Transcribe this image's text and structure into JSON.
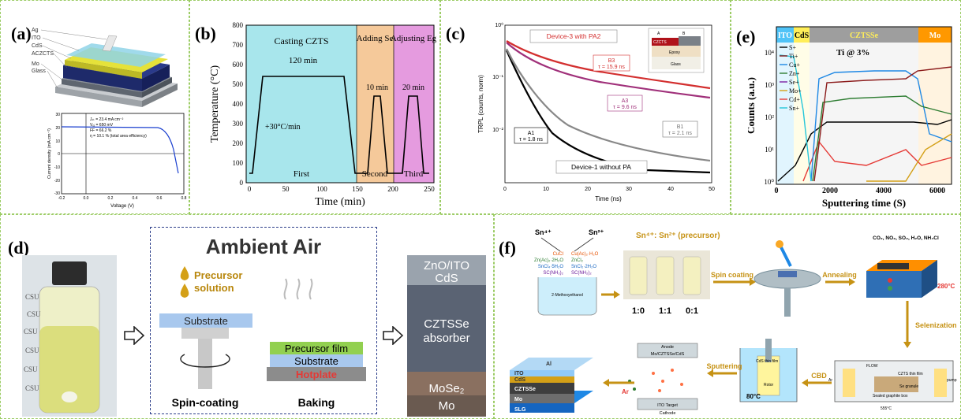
{
  "panels": {
    "a": {
      "label": "(a)",
      "layers": [
        "Ag",
        "ITO",
        "CdS",
        "ACZCTS",
        "Mo",
        "Glass"
      ],
      "jv": {
        "ylabel": "Current density (mA cm⁻²)",
        "xlabel": "Voltage (V)",
        "yticks": [
          "30",
          "20",
          "10",
          "0",
          "-10",
          "-20",
          "-30"
        ],
        "xticks": [
          "-0.2",
          "0.0",
          "0.2",
          "0.4",
          "0.6",
          "0.8"
        ],
        "params": [
          "Jₛₜ = 23.4 mA cm⁻²",
          "Vₒⱼ = 650 mV",
          "FF = 66.2 %",
          "η = 10.1 % (total area efficiency)"
        ]
      }
    },
    "b": {
      "label": "(b)",
      "ylabel": "Temperature (°C)",
      "xlabel": "Time (min)",
      "yticks": [
        "800",
        "700",
        "600",
        "500",
        "400",
        "300",
        "200",
        "100",
        "0"
      ],
      "xticks": [
        "0",
        "50",
        "100",
        "150",
        "200",
        "250"
      ],
      "stages": [
        "Casting CZTS",
        "Adding Se",
        "Adjusting Eg"
      ],
      "stage_names": [
        "First",
        "Second",
        "Third"
      ],
      "notes": [
        "120 min",
        "10 min",
        "20 min",
        "+30°C/min"
      ],
      "colors": {
        "first": "#a8e6ec",
        "second": "#f5c99a",
        "third": "#e59bdf"
      }
    },
    "c": {
      "label": "(c)",
      "ylabel": "TRPL (counts, norm)",
      "xlabel": "Time (ns)",
      "yticks": [
        "10⁰",
        "10⁻¹",
        "10⁻²"
      ],
      "xticks": [
        "0",
        "10",
        "20",
        "30",
        "40",
        "50"
      ],
      "title_box": "Device-3 with PA2",
      "bottom_box": "Device-1 without PA",
      "inset": [
        "A",
        "B",
        "CZCTS",
        "Epoxy",
        "Glass"
      ],
      "annotations": [
        {
          "name": "B3",
          "tau": "τ = 15.9 ns",
          "color": "#d32f2f"
        },
        {
          "name": "A3",
          "tau": "τ = 9.6 ns",
          "color": "#a0307a"
        },
        {
          "name": "B1",
          "tau": "τ = 2.1 ns",
          "color": "#777777"
        },
        {
          "name": "A1",
          "tau": "τ = 1.8 ns",
          "color": "#000000"
        }
      ]
    },
    "e": {
      "label": "(e)",
      "ylabel": "Counts (a.u.)",
      "xlabel": "Sputtering time (S)",
      "yticks": [
        "10⁴",
        "10³",
        "10²",
        "10¹",
        "10⁰"
      ],
      "xticks": [
        "0",
        "2000",
        "4000",
        "6000"
      ],
      "layers": [
        "ITO",
        "CdS",
        "CZTSSe",
        "Mo"
      ],
      "note": "Ti @ 3%",
      "legend": [
        {
          "name": "S+",
          "color": "#000000"
        },
        {
          "name": "Ti+",
          "color": "#8b1a1a"
        },
        {
          "name": "Cu+",
          "color": "#1e88e5"
        },
        {
          "name": "Zn+",
          "color": "#2e7d32"
        },
        {
          "name": "Se+",
          "color": "#7b1fa2"
        },
        {
          "name": "Mo+",
          "color": "#d4a017"
        },
        {
          "name": "Cd+",
          "color": "#e53935"
        },
        {
          "name": "Sn+",
          "color": "#26c6da"
        }
      ]
    },
    "d": {
      "label": "(d)",
      "bottle": [
        "CSU",
        "CSU",
        "CSU",
        "CSU",
        "CSU",
        "CSU"
      ],
      "title": "Ambient Air",
      "precursor": "Precursor solution",
      "spin_sub": "Substrate",
      "spin": "Spin-coating",
      "bake": [
        "Precursor film",
        "Substrate",
        "Hotplate"
      ],
      "baking": "Baking",
      "sem": [
        "ZnO/ITO",
        "CdS",
        "CZTSSe",
        "absorber",
        "MoSe₂",
        "Mo"
      ]
    },
    "f": {
      "label": "(f)",
      "ions": [
        "Sn⁴⁺",
        "Sn²⁺"
      ],
      "beaker_left": [
        "CuCl",
        "Zn(Ac)₂·2H₂O",
        "SnCl₄·5H₂O",
        "SC(NH₂)₂"
      ],
      "beaker_right": [
        "Cu(Ac)₂·H₂O",
        "ZnCl₂",
        "SnCl₂·2H₂O",
        "SC(NH₂)₂"
      ],
      "solvent": "2-Methoxyethanol",
      "ratio_title": "Sn⁴⁺: Sn²⁺ (precursor)",
      "ratios": [
        "1:0",
        "1:1",
        "0:1"
      ],
      "steps": [
        "Spin coating",
        "Annealing",
        "Selenization",
        "CBD",
        "Sputtering"
      ],
      "gases": "CO₂, NO₂, SO₂, H₂O, NH₄Cl",
      "temp": "280°C",
      "cbd": [
        "CdS thin film",
        "Rotor",
        "80°C"
      ],
      "sputter": [
        "Anode",
        "Mo/CZTSSe/CdS",
        "ITO Target",
        "Cathode",
        "Ar"
      ],
      "seleniz": [
        "FLOW",
        "Ar",
        "pump",
        "CZTS thin film",
        "Se granule",
        "Sealed graphite box",
        "555°C"
      ],
      "device": [
        "Al",
        "ITO",
        "CdS",
        "CZTSSe",
        "Mo",
        "SLG"
      ]
    }
  }
}
